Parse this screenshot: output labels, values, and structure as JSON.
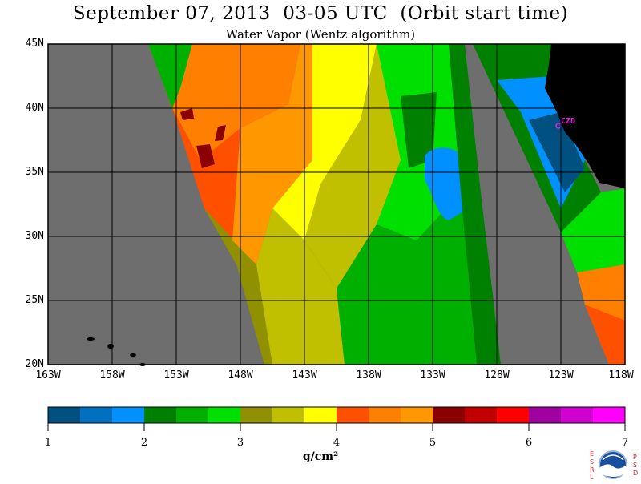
{
  "title": "September 07, 2013  03-05 UTC  (Orbit start time)",
  "subtitle": "Water Vapor (Wentz algorithm)",
  "map": {
    "lon_range": [
      -163,
      -118
    ],
    "lat_range": [
      20,
      45
    ],
    "lat_labels": [
      "45N",
      "40N",
      "35N",
      "30N",
      "25N",
      "20N"
    ],
    "lon_labels": [
      "163W",
      "158W",
      "153W",
      "148W",
      "143W",
      "138W",
      "133W",
      "128W",
      "123W",
      "118W"
    ],
    "station_label": "CZD",
    "colors": {
      "no_data": "#6e6e6e",
      "land": "#000000",
      "station": "#e020e0"
    }
  },
  "colorbar": {
    "ticks": [
      "1",
      "2",
      "3",
      "4",
      "5",
      "6",
      "7"
    ],
    "units": "g/cm²",
    "colors": [
      "#005080",
      "#0070c0",
      "#0090ff",
      "#008000",
      "#00b000",
      "#00e000",
      "#909000",
      "#c0c000",
      "#ffff00",
      "#ff5000",
      "#ff8000",
      "#ff9800",
      "#8b0000",
      "#c00000",
      "#ff0000",
      "#a000a0",
      "#d000d0",
      "#ff00ff"
    ]
  },
  "logo": {
    "left_letters": "ESRL",
    "right_letters": "PSD",
    "center": "NOAA"
  }
}
